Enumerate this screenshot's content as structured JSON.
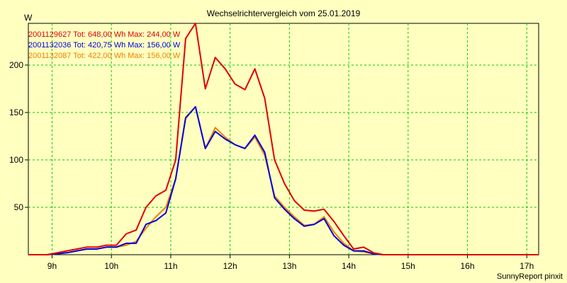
{
  "chart_data": {
    "type": "line",
    "title": "Wechselrichtervergleich vom 25.01.2019",
    "ylabel": "W",
    "xlabel": "",
    "ylim": [
      0,
      244
    ],
    "xlim": [
      8.6,
      17.2
    ],
    "yticks": [
      50,
      100,
      150,
      200
    ],
    "xticks": [
      {
        "value": 9,
        "label": "9h"
      },
      {
        "value": 10,
        "label": "10h"
      },
      {
        "value": 11,
        "label": "11h"
      },
      {
        "value": 12,
        "label": "12h"
      },
      {
        "value": 13,
        "label": "13h"
      },
      {
        "value": 14,
        "label": "14h"
      },
      {
        "value": 15,
        "label": "15h"
      },
      {
        "value": 16,
        "label": "16h"
      },
      {
        "value": 17,
        "label": "17h"
      }
    ],
    "grid": true,
    "legend_position": "top-left",
    "x": [
      8.6,
      8.917,
      9.083,
      9.25,
      9.417,
      9.583,
      9.75,
      9.917,
      10.083,
      10.25,
      10.417,
      10.583,
      10.75,
      10.917,
      11.083,
      11.25,
      11.417,
      11.583,
      11.75,
      11.917,
      12.083,
      12.25,
      12.417,
      12.583,
      12.75,
      12.917,
      13.083,
      13.25,
      13.417,
      13.583,
      13.75,
      13.917,
      14.083,
      14.25,
      14.417,
      14.583,
      14.75,
      14.917,
      15.083,
      15.25,
      15.417,
      15.583,
      15.75,
      15.917,
      16.083,
      16.25,
      16.417,
      16.583,
      16.75,
      16.917,
      17.083,
      17.2
    ],
    "series": [
      {
        "name": "2001129627",
        "label": "2001129627 Tot: 648,00 Wh Max: 244,00 W",
        "color": "#e00000",
        "values": [
          0,
          0,
          2,
          4,
          6,
          8,
          8,
          10,
          10,
          22,
          26,
          50,
          62,
          68,
          100,
          228,
          244,
          175,
          208,
          196,
          180,
          174,
          196,
          165,
          100,
          75,
          57,
          47,
          46,
          48,
          35,
          20,
          6,
          8,
          2,
          0,
          0,
          0,
          0,
          0,
          0,
          0,
          0,
          0,
          0,
          0,
          0,
          0,
          0,
          0,
          0,
          0
        ]
      },
      {
        "name": "2001132036",
        "label": "2001132036 Tot: 420,75 Wh Max: 156,00 W",
        "color": "#0000e0",
        "values": [
          0,
          0,
          1,
          2,
          4,
          6,
          6,
          8,
          8,
          12,
          12,
          32,
          36,
          44,
          80,
          144,
          156,
          112,
          130,
          122,
          116,
          112,
          126,
          108,
          60,
          48,
          38,
          30,
          32,
          38,
          20,
          10,
          4,
          4,
          1,
          0,
          0,
          0,
          0,
          0,
          0,
          0,
          0,
          0,
          0,
          0,
          0,
          0,
          0,
          0,
          0,
          0
        ]
      },
      {
        "name": "2001132087",
        "label": "2001132087 Tot: 422,00 Wh Max: 156,00 W",
        "color": "#f08000",
        "values": [
          0,
          0,
          1,
          2,
          4,
          6,
          6,
          8,
          8,
          10,
          14,
          28,
          40,
          50,
          80,
          145,
          156,
          112,
          134,
          124,
          116,
          112,
          124,
          105,
          62,
          50,
          40,
          31,
          32,
          40,
          24,
          12,
          4,
          3,
          1,
          0,
          0,
          0,
          0,
          0,
          0,
          0,
          0,
          0,
          0,
          0,
          0,
          0,
          0,
          0,
          0,
          0
        ]
      }
    ]
  },
  "footer": "SunnyReport pinxit"
}
